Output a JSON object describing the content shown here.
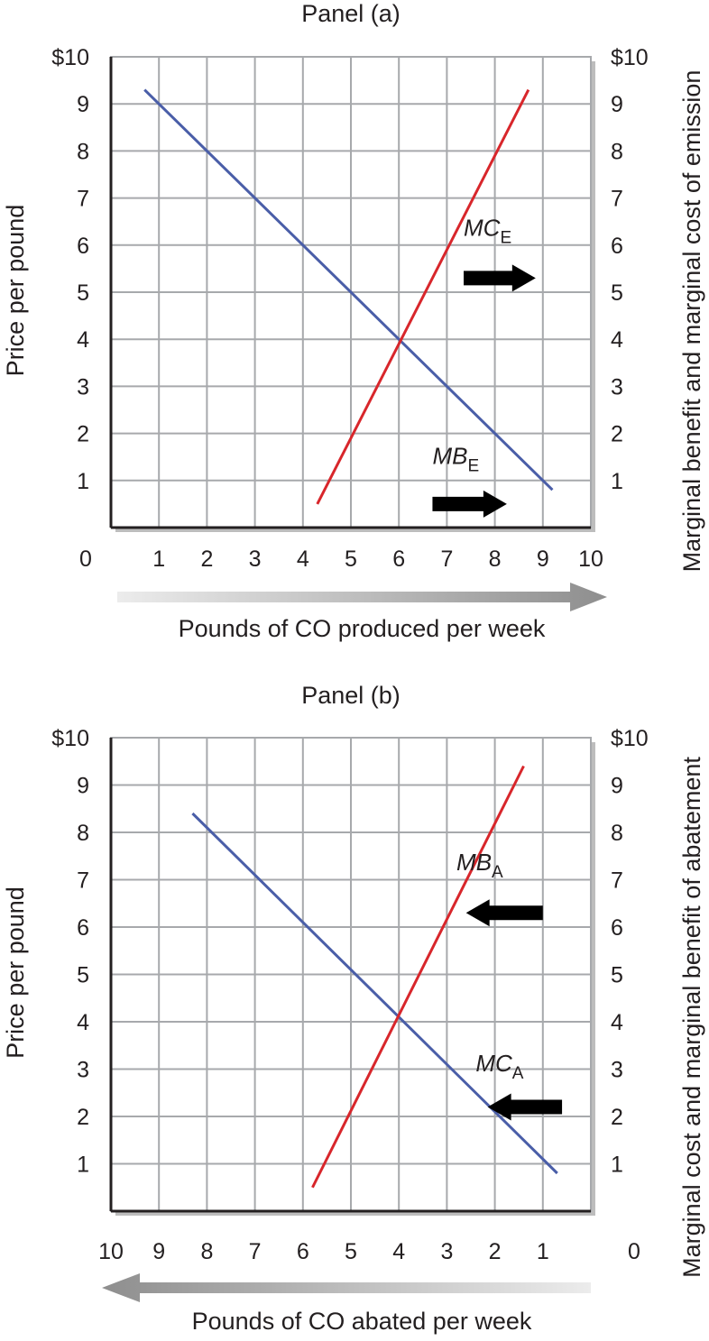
{
  "chart_data": [
    {
      "type": "line",
      "title": "Panel (a)",
      "ylabel_left": "Price per pound",
      "ylabel_right": "Marginal benefit and marginal cost of emission",
      "xlabel": "Pounds of CO produced per week",
      "x_direction": "increasing to the right",
      "x_ticks": [
        "0",
        "1",
        "2",
        "3",
        "4",
        "5",
        "6",
        "7",
        "8",
        "9",
        "10"
      ],
      "y_ticks_left": [
        "",
        "1",
        "2",
        "3",
        "4",
        "5",
        "6",
        "7",
        "8",
        "9",
        "$10"
      ],
      "y_ticks_right": [
        "",
        "1",
        "2",
        "3",
        "4",
        "5",
        "6",
        "7",
        "8",
        "9",
        "$10"
      ],
      "xlim": [
        0,
        10
      ],
      "ylim": [
        0,
        10
      ],
      "grid": true,
      "arrow_direction": "right",
      "series": [
        {
          "id": "mb",
          "label_main": "MB",
          "label_sub": "E",
          "color": "#4a5ea8",
          "x": [
            0.7,
            9.2
          ],
          "y": [
            9.3,
            0.8
          ],
          "label_at": [
            6.7,
            1.35
          ],
          "arrow": "right",
          "arrow_from": [
            6.7,
            0.5
          ],
          "arrow_to": [
            8.25,
            0.5
          ]
        },
        {
          "id": "mc",
          "label_main": "MC",
          "label_sub": "E",
          "color": "#d8262b",
          "x": [
            4.3,
            8.7
          ],
          "y": [
            0.5,
            9.3
          ],
          "label_at": [
            7.35,
            6.2
          ],
          "arrow": "right",
          "arrow_from": [
            7.35,
            5.3
          ],
          "arrow_to": [
            8.85,
            5.3
          ]
        }
      ],
      "intersection": [
        6,
        4
      ]
    },
    {
      "type": "line",
      "title": "Panel (b)",
      "ylabel_left": "Price per pound",
      "ylabel_right": "Marginal cost and marginal benefit of abatement",
      "xlabel": "Pounds of CO abated per week",
      "x_direction": "increasing to the left",
      "x_ticks": [
        "10",
        "9",
        "8",
        "7",
        "6",
        "5",
        "4",
        "3",
        "2",
        "1",
        "0"
      ],
      "y_ticks_left": [
        "",
        "1",
        "2",
        "3",
        "4",
        "5",
        "6",
        "7",
        "8",
        "9",
        "$10"
      ],
      "y_ticks_right": [
        "",
        "1",
        "2",
        "3",
        "4",
        "5",
        "6",
        "7",
        "8",
        "9",
        "$10"
      ],
      "xlim": [
        10,
        0
      ],
      "ylim": [
        0,
        10
      ],
      "grid": true,
      "arrow_direction": "left",
      "series": [
        {
          "id": "mc",
          "label_main": "MC",
          "label_sub": "A",
          "color": "#4a5ea8",
          "x": [
            8.3,
            0.7
          ],
          "y": [
            8.4,
            0.8
          ],
          "label_at": [
            2.4,
            2.95
          ],
          "arrow": "left",
          "arrow_from": [
            0.6,
            2.2
          ],
          "arrow_to": [
            2.15,
            2.2
          ]
        },
        {
          "id": "mb",
          "label_main": "MB",
          "label_sub": "A",
          "color": "#d8262b",
          "x": [
            5.8,
            1.4
          ],
          "y": [
            0.5,
            9.4
          ],
          "label_at": [
            2.8,
            7.2
          ],
          "arrow": "left",
          "arrow_from": [
            1.0,
            6.3
          ],
          "arrow_to": [
            2.6,
            6.3
          ]
        }
      ],
      "intersection": [
        4,
        4.1
      ]
    }
  ]
}
